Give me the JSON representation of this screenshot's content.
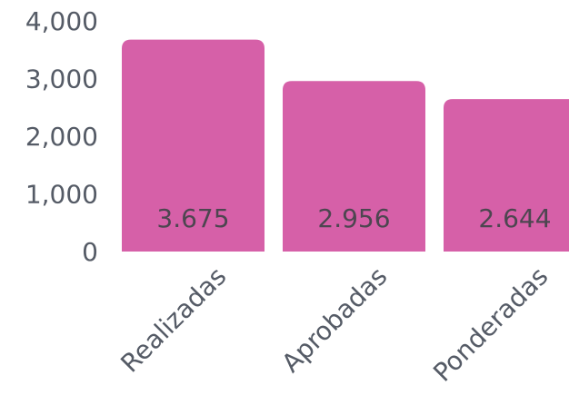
{
  "chart_data": {
    "type": "bar",
    "categories": [
      "Realizadas",
      "Aprobadas",
      "Ponderadas"
    ],
    "values": [
      3675,
      2956,
      2644
    ],
    "data_labels": [
      "3.675",
      "2.956",
      "2.644"
    ],
    "y_ticks": [
      {
        "value": 0,
        "label": "0"
      },
      {
        "value": 1000,
        "label": "1,000"
      },
      {
        "value": 2000,
        "label": "2,000"
      },
      {
        "value": 3000,
        "label": "3,000"
      },
      {
        "value": 4000,
        "label": "4,000"
      }
    ],
    "ylim": [
      0,
      4000
    ],
    "grid": false,
    "bar_color": "#d660a8"
  }
}
